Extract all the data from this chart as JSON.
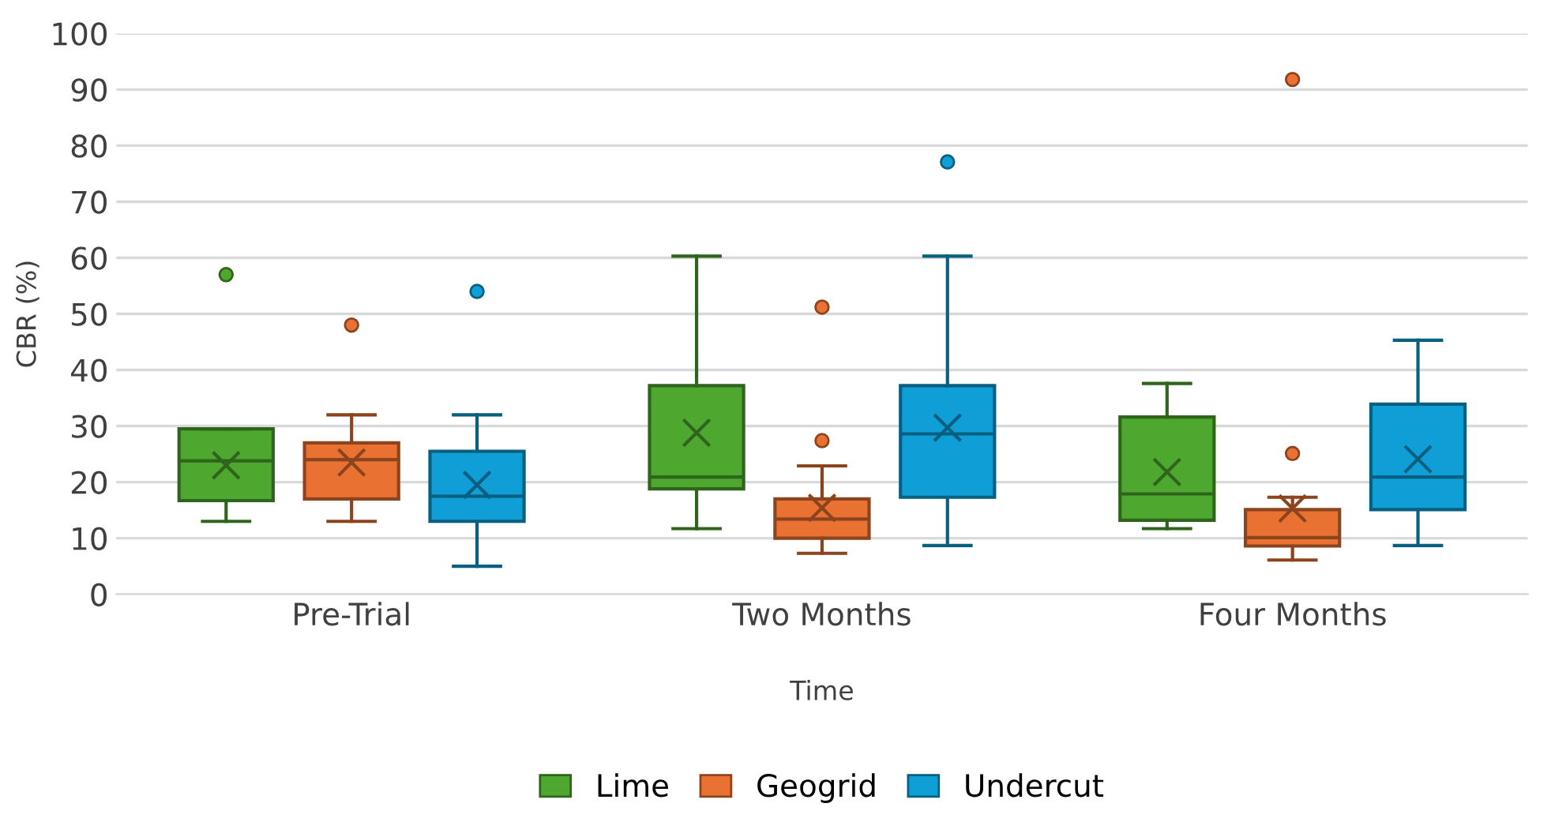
{
  "chart_data": {
    "type": "box",
    "xlabel": "Time",
    "ylabel": "CBR (%)",
    "categories": [
      "Pre-Trial",
      "Two Months",
      "Four Months"
    ],
    "ylim": [
      0,
      100
    ],
    "yticks": [
      0,
      10,
      20,
      30,
      40,
      50,
      60,
      70,
      80,
      90,
      100
    ],
    "grid": "y",
    "legend": "bottom",
    "series": [
      {
        "name": "Lime",
        "color": "#4ea72e",
        "boxes": [
          {
            "low": 13,
            "q1": 16.7,
            "median": 23.8,
            "q3": 29.5,
            "high": 29.5,
            "mean": 23,
            "outliers": [
              57
            ]
          },
          {
            "low": 11.7,
            "q1": 18.8,
            "median": 20.9,
            "q3": 37.2,
            "high": 60.3,
            "mean": 28.8
          },
          {
            "low": 11.7,
            "q1": 13.2,
            "median": 17.9,
            "q3": 31.6,
            "high": 37.6,
            "mean": 21.8
          }
        ]
      },
      {
        "name": "Geogrid",
        "color": "#e97132",
        "boxes": [
          {
            "low": 13,
            "q1": 17,
            "median": 24,
            "q3": 27,
            "high": 32,
            "mean": 23.5,
            "outliers": [
              48
            ]
          },
          {
            "low": 7.3,
            "q1": 10,
            "median": 13.4,
            "q3": 17,
            "high": 22.9,
            "mean": 15.4,
            "outliers": [
              51.2,
              27.4
            ]
          },
          {
            "low": 6.1,
            "q1": 8.6,
            "median": 10.1,
            "q3": 15.1,
            "high": 17.3,
            "mean": 15.3,
            "outliers": [
              91.8,
              25.1
            ]
          }
        ]
      },
      {
        "name": "Undercut",
        "color": "#0f9ed5",
        "boxes": [
          {
            "low": 5,
            "q1": 13,
            "median": 17.5,
            "q3": 25.5,
            "high": 32,
            "mean": 19.5,
            "outliers": [
              54
            ]
          },
          {
            "low": 8.7,
            "q1": 17.3,
            "median": 28.6,
            "q3": 37.2,
            "high": 60.3,
            "mean": 29.7,
            "outliers": [
              77.1
            ]
          },
          {
            "low": 8.7,
            "q1": 15.1,
            "median": 20.9,
            "q3": 33.9,
            "high": 45.3,
            "mean": 24.1
          }
        ]
      }
    ]
  }
}
